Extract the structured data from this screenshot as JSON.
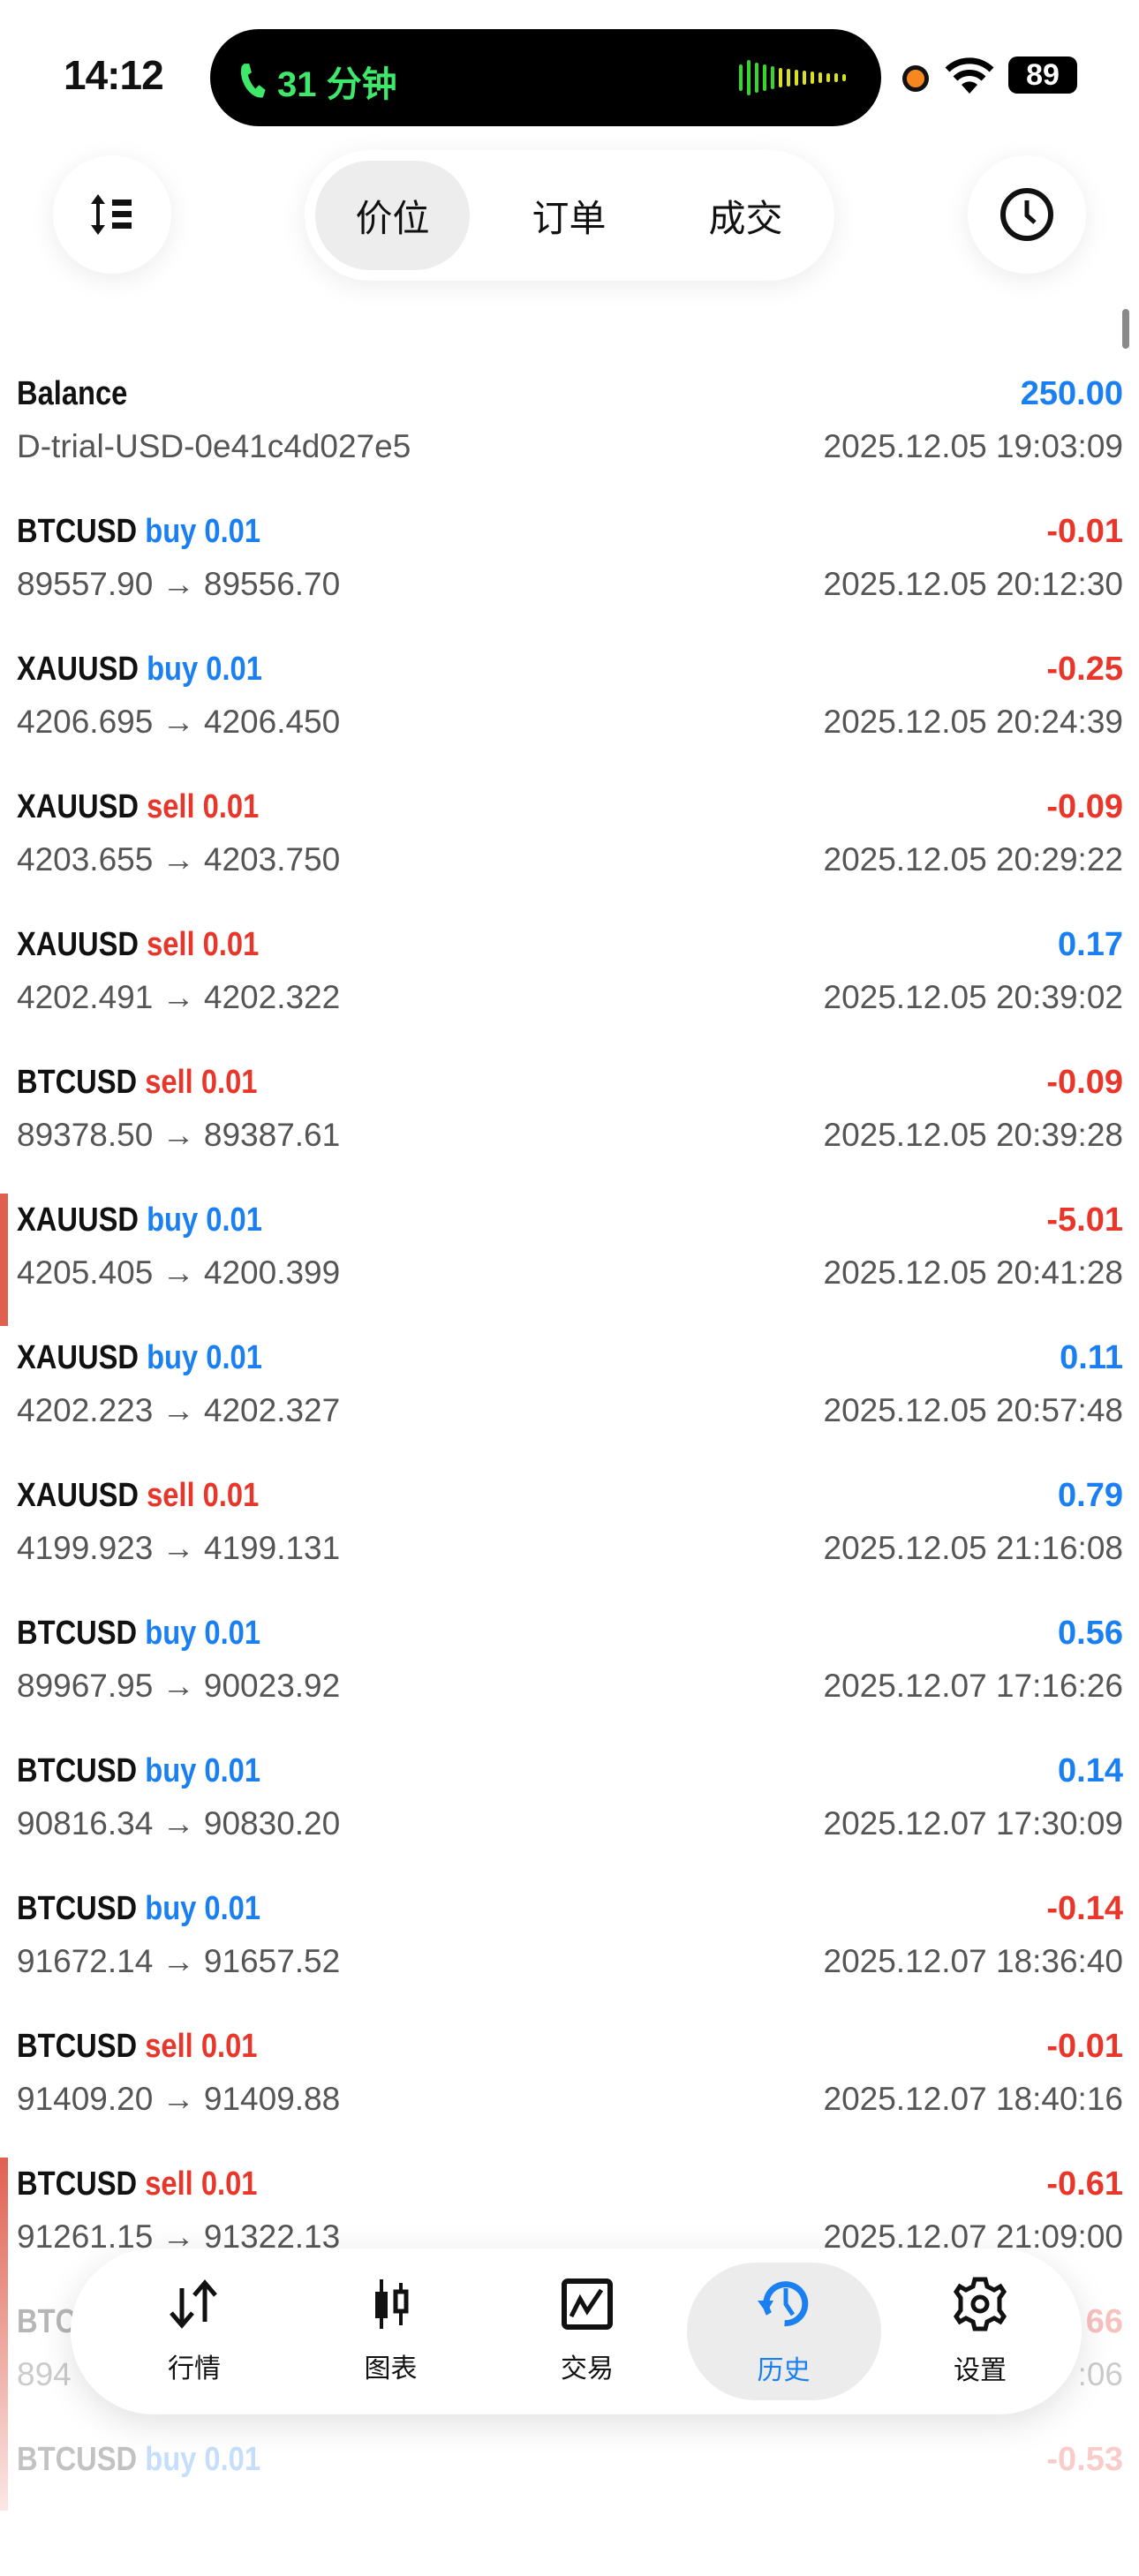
{
  "status_bar": {
    "time": "14:12",
    "call_duration": "31 分钟",
    "battery": "89"
  },
  "top_bar": {
    "sort_icon": "sort-list-icon",
    "history_icon": "clock-icon",
    "segments": [
      {
        "label": "价位",
        "selected": true
      },
      {
        "label": "订单",
        "selected": false
      },
      {
        "label": "成交",
        "selected": false
      }
    ]
  },
  "colors": {
    "accent": "#1a7ff0",
    "loss": "#e8362b",
    "call": "#3ee86a"
  },
  "balance": {
    "title": "Balance",
    "amount": "250.00",
    "account": "D-trial-USD-0e41c4d027e5",
    "time": "2025.12.05 19:03:09"
  },
  "deals": [
    {
      "symbol": "BTCUSD",
      "side": "buy",
      "volume": "0.01",
      "profit": "-0.01",
      "prices": "89557.90 → 89556.70",
      "time": "2025.12.05 20:12:30"
    },
    {
      "symbol": "XAUUSD",
      "side": "buy",
      "volume": "0.01",
      "profit": "-0.25",
      "prices": "4206.695 → 4206.450",
      "time": "2025.12.05 20:24:39"
    },
    {
      "symbol": "XAUUSD",
      "side": "sell",
      "volume": "0.01",
      "profit": "-0.09",
      "prices": "4203.655 → 4203.750",
      "time": "2025.12.05 20:29:22"
    },
    {
      "symbol": "XAUUSD",
      "side": "sell",
      "volume": "0.01",
      "profit": "0.17",
      "prices": "4202.491 → 4202.322",
      "time": "2025.12.05 20:39:02"
    },
    {
      "symbol": "BTCUSD",
      "side": "sell",
      "volume": "0.01",
      "profit": "-0.09",
      "prices": "89378.50 → 89387.61",
      "time": "2025.12.05 20:39:28"
    },
    {
      "symbol": "XAUUSD",
      "side": "buy",
      "volume": "0.01",
      "profit": "-5.01",
      "prices": "4205.405 → 4200.399",
      "time": "2025.12.05 20:41:28",
      "marked": true
    },
    {
      "symbol": "XAUUSD",
      "side": "buy",
      "volume": "0.01",
      "profit": "0.11",
      "prices": "4202.223 → 4202.327",
      "time": "2025.12.05 20:57:48"
    },
    {
      "symbol": "XAUUSD",
      "side": "sell",
      "volume": "0.01",
      "profit": "0.79",
      "prices": "4199.923 → 4199.131",
      "time": "2025.12.05 21:16:08"
    },
    {
      "symbol": "BTCUSD",
      "side": "buy",
      "volume": "0.01",
      "profit": "0.56",
      "prices": "89967.95 → 90023.92",
      "time": "2025.12.07 17:16:26"
    },
    {
      "symbol": "BTCUSD",
      "side": "buy",
      "volume": "0.01",
      "profit": "0.14",
      "prices": "90816.34 → 90830.20",
      "time": "2025.12.07 17:30:09"
    },
    {
      "symbol": "BTCUSD",
      "side": "buy",
      "volume": "0.01",
      "profit": "-0.14",
      "prices": "91672.14 → 91657.52",
      "time": "2025.12.07 18:36:40"
    },
    {
      "symbol": "BTCUSD",
      "side": "sell",
      "volume": "0.01",
      "profit": "-0.01",
      "prices": "91409.20 → 91409.88",
      "time": "2025.12.07 18:40:16"
    },
    {
      "symbol": "BTCUSD",
      "side": "sell",
      "volume": "0.01",
      "profit": "-0.61",
      "prices": "91261.15 → 91322.13",
      "time": "2025.12.07 21:09:00",
      "marked": true
    },
    {
      "symbol": "BTC",
      "side": "",
      "volume": "",
      "profit": "66",
      "prices": "894",
      "time": ":06",
      "obscured": true
    },
    {
      "symbol": "BTCUSD",
      "side": "buy",
      "volume": "0.01",
      "profit": "-0.53",
      "prices": "",
      "time": "",
      "faded": true
    }
  ],
  "tab_bar": {
    "items": [
      {
        "label": "行情",
        "icon": "arrows-up-down-icon",
        "selected": false
      },
      {
        "label": "图表",
        "icon": "candlestick-icon",
        "selected": false
      },
      {
        "label": "交易",
        "icon": "trade-chart-icon",
        "selected": false
      },
      {
        "label": "历史",
        "icon": "history-icon",
        "selected": true
      },
      {
        "label": "设置",
        "icon": "gear-icon",
        "selected": false
      }
    ]
  }
}
